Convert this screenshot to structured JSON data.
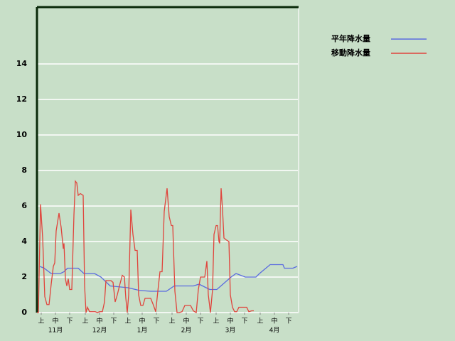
{
  "chart_data": {
    "type": "line",
    "xlim": [
      0,
      184
    ],
    "ylim": [
      0,
      17.2
    ],
    "yticks": [
      0,
      2,
      4,
      6,
      8,
      10,
      12,
      14
    ],
    "xticks": [
      {
        "value": 3,
        "label": "上"
      },
      {
        "value": 13,
        "label": "中"
      },
      {
        "value": 23,
        "label": "下"
      },
      {
        "value": 34,
        "label": "上"
      },
      {
        "value": 44,
        "label": "中"
      },
      {
        "value": 54,
        "label": "下"
      },
      {
        "value": 64,
        "label": "上"
      },
      {
        "value": 74,
        "label": "中"
      },
      {
        "value": 84,
        "label": "下"
      },
      {
        "value": 95,
        "label": "上"
      },
      {
        "value": 105,
        "label": "中"
      },
      {
        "value": 115,
        "label": "下"
      },
      {
        "value": 126,
        "label": "上"
      },
      {
        "value": 136,
        "label": "中"
      },
      {
        "value": 146,
        "label": "下"
      },
      {
        "value": 157,
        "label": "上"
      },
      {
        "value": 167,
        "label": "中"
      },
      {
        "value": 177,
        "label": "下"
      }
    ],
    "month_ticks": [
      {
        "value": 13,
        "label": "11月"
      },
      {
        "value": 44,
        "label": "12月"
      },
      {
        "value": 74,
        "label": "1月"
      },
      {
        "value": 105,
        "label": "2月"
      },
      {
        "value": 136,
        "label": "3月"
      },
      {
        "value": 167,
        "label": "4月"
      }
    ],
    "grid": true,
    "series": [
      {
        "name": "平年降水量",
        "color": "#5a6be0",
        "x": [
          2,
          5,
          10,
          16.5,
          19,
          21.5,
          29,
          33,
          40.5,
          45,
          51.5,
          64,
          72,
          80,
          91,
          96.5,
          110,
          114,
          119,
          121.5,
          126.5,
          136.5,
          140,
          146.5,
          154,
          156.5,
          164,
          173,
          174,
          180,
          183
        ],
        "values": [
          2.6,
          2.5,
          2.2,
          2.2,
          2.3,
          2.5,
          2.5,
          2.2,
          2.2,
          2.0,
          1.5,
          1.4,
          1.25,
          1.2,
          1.2,
          1.5,
          1.5,
          1.6,
          1.4,
          1.3,
          1.3,
          2.0,
          2.2,
          2.0,
          2.0,
          2.2,
          2.7,
          2.7,
          2.5,
          2.5,
          2.6
        ]
      },
      {
        "name": "移動降水量",
        "color": "#e0443c",
        "x": [
          0,
          1,
          2.5,
          4,
          5.5,
          7,
          8.5,
          10,
          11.5,
          12.5,
          13.5,
          15.5,
          17,
          18.5,
          19,
          20,
          21,
          22,
          23,
          24.5,
          26,
          27,
          28,
          29,
          30.5,
          32.5,
          33.5,
          34.5,
          35.5,
          37,
          39,
          41,
          42.5,
          44,
          46,
          47.5,
          48.5,
          50,
          52,
          53.5,
          55,
          56.5,
          58,
          60,
          61.5,
          62.5,
          63.5,
          64.5,
          66,
          67.5,
          69,
          70.5,
          71.5,
          73,
          74.5,
          76,
          78,
          80,
          82,
          83.5,
          85,
          86.5,
          88,
          89.5,
          91.5,
          93,
          94.5,
          95.5,
          97,
          98.5,
          100,
          102,
          104,
          106,
          108,
          110,
          112,
          113.5,
          115,
          116.5,
          118,
          119.5,
          120.5,
          122,
          123.5,
          124.5,
          126,
          127,
          128,
          128.5,
          129.5,
          130.5,
          131.5,
          133,
          135,
          136,
          137.5,
          139,
          140.5,
          142,
          144,
          146,
          147.5,
          149,
          151,
          152.5
        ],
        "values": [
          0,
          0,
          6.1,
          4.2,
          0.9,
          0.45,
          0.45,
          1.6,
          2.6,
          2.8,
          4.6,
          5.6,
          4.8,
          3.6,
          3.9,
          1.9,
          1.5,
          1.9,
          1.3,
          1.3,
          5.5,
          7.4,
          7.3,
          6.6,
          6.7,
          6.6,
          1.5,
          0,
          0.3,
          0.05,
          0.05,
          0.05,
          0,
          0.05,
          0.05,
          0.6,
          1.8,
          1.8,
          1.8,
          1.7,
          0.6,
          1.0,
          1.5,
          2.1,
          2.0,
          0.8,
          0,
          1.0,
          5.8,
          4.4,
          3.5,
          3.5,
          1.0,
          0.4,
          0.4,
          0.8,
          0.8,
          0.8,
          0.4,
          0.05,
          1.2,
          2.3,
          2.3,
          5.7,
          7.0,
          5.4,
          4.9,
          4.9,
          1.2,
          0,
          0,
          0.05,
          0.4,
          0.4,
          0.4,
          0.1,
          0,
          1.3,
          2.0,
          2.0,
          2.0,
          2.9,
          1.0,
          0,
          1.3,
          4.4,
          4.9,
          4.9,
          4.0,
          3.9,
          7.0,
          5.8,
          4.2,
          4.1,
          4.0,
          1.0,
          0.3,
          0.05,
          0.05,
          0.3,
          0.3,
          0.3,
          0.3,
          0.05,
          0.1,
          0.1
        ]
      }
    ],
    "legend": "top-right"
  }
}
